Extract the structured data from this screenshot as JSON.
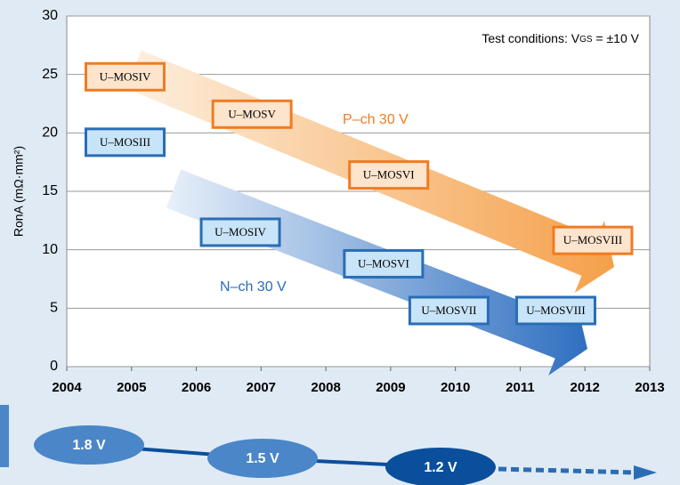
{
  "chart_data": {
    "type": "scatter",
    "y_label": "RonA (mΩ·mm²)",
    "note": {
      "prefix": "Test conditions: V",
      "sub": "GS",
      "suffix": " = ±10 V"
    },
    "xlim": [
      2004,
      2013
    ],
    "xticks": [
      2004,
      2005,
      2006,
      2007,
      2008,
      2009,
      2010,
      2011,
      2012,
      2013
    ],
    "ylim": [
      0,
      30
    ],
    "yticks": [
      0,
      5,
      10,
      15,
      20,
      25,
      30
    ],
    "grid": true,
    "series": [
      {
        "name": "P–ch 30 V",
        "color": "#f07c22",
        "fill": "#fde4cc",
        "labels": [
          "U–MOSIV",
          "U–MOSV",
          "U–MOSVI",
          "U–MOSVIII"
        ],
        "x": [
          2004.9,
          2006.86,
          2008.97,
          2012.12
        ],
        "values": [
          24.8,
          21.6,
          16.4,
          10.8
        ]
      },
      {
        "name": "N–ch 30 V",
        "color": "#2a6db5",
        "fill": "#c8e4f8",
        "labels": [
          "U–MOSIII",
          "U–MOSIV",
          "U–MOSVI",
          "U–MOSVII",
          "U–MOSVIII"
        ],
        "x": [
          2004.9,
          2006.68,
          2008.89,
          2009.9,
          2011.55
        ],
        "values": [
          19.2,
          11.5,
          8.8,
          4.8,
          4.8
        ]
      }
    ],
    "voltage_roadmap": [
      "1.8 V",
      "1.5 V",
      "1.2 V"
    ]
  }
}
